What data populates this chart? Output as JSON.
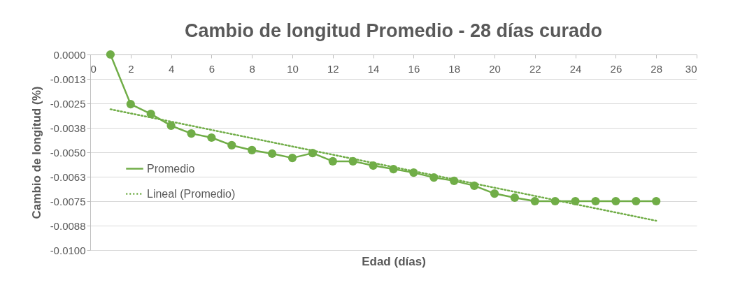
{
  "chart_data": {
    "type": "line",
    "title": "Cambio de longitud Promedio - 28 días curado",
    "xlabel": "Edad (días)",
    "ylabel": "Cambio de longitud (%)",
    "xlim": [
      0,
      30
    ],
    "xticks": [
      0,
      2,
      4,
      6,
      8,
      10,
      12,
      14,
      16,
      18,
      20,
      22,
      24,
      26,
      28,
      30
    ],
    "ylim": [
      -0.01,
      0
    ],
    "yticks": [
      {
        "value": 0,
        "label": "0.0000"
      },
      {
        "value": -0.00125,
        "label": "-0.0013"
      },
      {
        "value": -0.0025,
        "label": "-0.0025"
      },
      {
        "value": -0.00375,
        "label": "-0.0038"
      },
      {
        "value": -0.005,
        "label": "-0.0050"
      },
      {
        "value": -0.00625,
        "label": "-0.0063"
      },
      {
        "value": -0.0075,
        "label": "-0.0075"
      },
      {
        "value": -0.00875,
        "label": "-0.0088"
      },
      {
        "value": -0.01,
        "label": "-0.0100"
      }
    ],
    "grid": "y",
    "legend": "left",
    "series": [
      {
        "name": "Promedio",
        "color": "#70ad47",
        "marker": "circle",
        "line_style": "solid",
        "x": [
          1,
          2,
          3,
          4,
          5,
          6,
          7,
          8,
          9,
          10,
          11,
          12,
          13,
          14,
          15,
          16,
          17,
          18,
          19,
          20,
          21,
          22,
          23,
          24,
          25,
          26,
          27,
          28
        ],
        "values": [
          0,
          -0.00254,
          -0.00304,
          -0.00364,
          -0.00404,
          -0.00425,
          -0.00464,
          -0.00489,
          -0.00507,
          -0.00529,
          -0.00504,
          -0.00546,
          -0.00546,
          -0.00568,
          -0.00586,
          -0.00604,
          -0.00629,
          -0.00646,
          -0.00671,
          -0.00711,
          -0.00732,
          -0.0075,
          -0.0075,
          -0.0075,
          -0.0075,
          -0.0075,
          -0.0075,
          -0.0075
        ]
      },
      {
        "name": "Lineal (Promedio)",
        "type": "line",
        "color": "#70ad47",
        "marker": "none",
        "line_style": "dotted",
        "x": [
          1,
          28
        ],
        "values": [
          -0.0028,
          -0.0085
        ]
      }
    ]
  }
}
